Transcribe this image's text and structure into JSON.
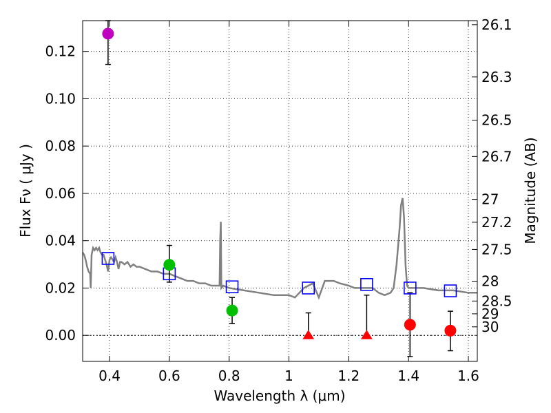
{
  "chart_data": {
    "type": "scatter",
    "xlabel": "Wavelength  λ (μm)",
    "ylabel": "Flux  Fν  ( μJy )",
    "y2label": "Magnitude (AB)",
    "xlim": [
      0.31,
      1.63
    ],
    "ylim": [
      -0.011,
      0.133
    ],
    "grid": true,
    "x_ticks": [
      0.4,
      0.6,
      0.8,
      1.0,
      1.2,
      1.4,
      1.6
    ],
    "x_tick_labels": [
      "0.4",
      "0.6",
      "0.8",
      "1",
      "1.2",
      "1.4",
      "1.6"
    ],
    "y_ticks": [
      0.0,
      0.02,
      0.04,
      0.06,
      0.08,
      0.1,
      0.12
    ],
    "y_tick_labels": [
      "0.00",
      "0.02",
      "0.04",
      "0.06",
      "0.08",
      "0.10",
      "0.12"
    ],
    "mag_ticks": [
      {
        "label": "26.1",
        "flux": 0.1313
      },
      {
        "label": "26.3",
        "flux": 0.1092
      },
      {
        "label": "26.5",
        "flux": 0.0909
      },
      {
        "label": "26.7",
        "flux": 0.0756
      },
      {
        "label": "27",
        "flux": 0.0575
      },
      {
        "label": "27.2",
        "flux": 0.0478
      },
      {
        "label": "27.5",
        "flux": 0.0363
      },
      {
        "label": "28",
        "flux": 0.0229
      },
      {
        "label": "28.5",
        "flux": 0.0145
      },
      {
        "label": "29",
        "flux": 0.0091
      },
      {
        "label": "30",
        "flux": 0.0036
      }
    ],
    "sed_model": {
      "color": "#808080",
      "x": [
        0.31,
        0.315,
        0.32,
        0.325,
        0.33,
        0.335,
        0.337,
        0.34,
        0.345,
        0.35,
        0.355,
        0.36,
        0.365,
        0.37,
        0.375,
        0.38,
        0.385,
        0.39,
        0.395,
        0.4,
        0.405,
        0.41,
        0.415,
        0.42,
        0.425,
        0.43,
        0.435,
        0.44,
        0.45,
        0.46,
        0.47,
        0.48,
        0.49,
        0.5,
        0.52,
        0.54,
        0.56,
        0.58,
        0.6,
        0.62,
        0.64,
        0.66,
        0.68,
        0.7,
        0.72,
        0.74,
        0.76,
        0.768,
        0.77,
        0.772,
        0.774,
        0.78,
        0.8,
        0.85,
        0.9,
        0.95,
        1.0,
        1.02,
        1.05,
        1.08,
        1.1,
        1.12,
        1.15,
        1.17,
        1.2,
        1.22,
        1.25,
        1.28,
        1.3,
        1.32,
        1.34,
        1.35,
        1.36,
        1.37,
        1.375,
        1.38,
        1.385,
        1.39,
        1.395,
        1.4,
        1.45,
        1.5,
        1.55,
        1.6,
        1.63
      ],
      "y": [
        0.035,
        0.034,
        0.032,
        0.029,
        0.027,
        0.026,
        0.02,
        0.034,
        0.037,
        0.036,
        0.037,
        0.036,
        0.037,
        0.035,
        0.034,
        0.034,
        0.032,
        0.03,
        0.027,
        0.032,
        0.033,
        0.032,
        0.031,
        0.033,
        0.031,
        0.028,
        0.031,
        0.031,
        0.03,
        0.031,
        0.029,
        0.03,
        0.029,
        0.029,
        0.028,
        0.027,
        0.027,
        0.026,
        0.026,
        0.025,
        0.024,
        0.023,
        0.023,
        0.022,
        0.022,
        0.021,
        0.021,
        0.021,
        0.04,
        0.048,
        0.02,
        0.021,
        0.02,
        0.019,
        0.018,
        0.017,
        0.017,
        0.016,
        0.02,
        0.022,
        0.016,
        0.023,
        0.023,
        0.022,
        0.021,
        0.02,
        0.02,
        0.02,
        0.018,
        0.017,
        0.018,
        0.02,
        0.03,
        0.045,
        0.055,
        0.058,
        0.05,
        0.03,
        0.021,
        0.02,
        0.02,
        0.019,
        0.019,
        0.018,
        0.018
      ]
    },
    "model_photometry": {
      "name": "",
      "marker": "open-square",
      "color": "#0000ff",
      "x": [
        0.395,
        0.6,
        0.81,
        1.065,
        1.26,
        1.405,
        1.54
      ],
      "y": [
        0.0325,
        0.026,
        0.0205,
        0.02,
        0.0215,
        0.02,
        0.0188
      ]
    },
    "observations": [
      {
        "x": 0.395,
        "y": 0.1275,
        "err_low": 0.1145,
        "err_high": 0.133,
        "color": "#bf00bf",
        "marker": "circle"
      },
      {
        "x": 0.6,
        "y": 0.0298,
        "err_low": 0.0225,
        "err_high": 0.038,
        "color": "#00bf00",
        "marker": "circle"
      },
      {
        "x": 0.81,
        "y": 0.0105,
        "err_low": 0.005,
        "err_high": 0.016,
        "color": "#00bf00",
        "marker": "circle"
      },
      {
        "x": 1.065,
        "y": 0.0,
        "err_low": 0.0,
        "err_high": 0.0095,
        "color": "#ff0000",
        "marker": "triangle"
      },
      {
        "x": 1.26,
        "y": 0.0,
        "err_low": 0.0,
        "err_high": 0.017,
        "color": "#ff0000",
        "marker": "triangle"
      },
      {
        "x": 1.405,
        "y": 0.0045,
        "err_low": -0.009,
        "err_high": 0.018,
        "color": "#ff0000",
        "marker": "circle"
      },
      {
        "x": 1.54,
        "y": 0.002,
        "err_low": -0.0065,
        "err_high": 0.0102,
        "color": "#ff0000",
        "marker": "circle"
      }
    ]
  }
}
